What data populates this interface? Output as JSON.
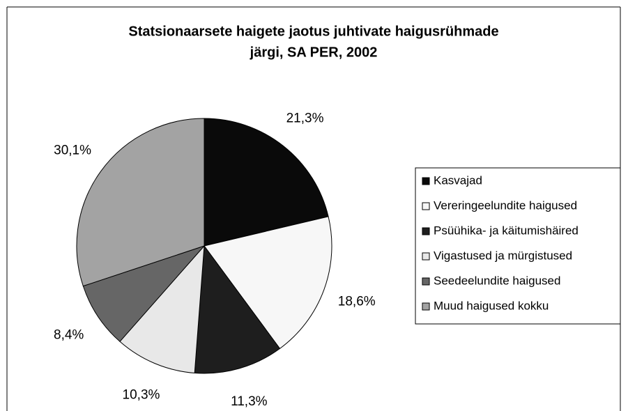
{
  "chart_data": {
    "type": "pie",
    "title": [
      "Statsionaarsete haigete jaotus juhtivate haigusrühmade",
      "järgi, SA PER, 2002"
    ],
    "categories": [
      "Kasvajad",
      "Vereringeelundite haigused",
      "Psüühika-  ja käitumishäired",
      "Vigastused ja mürgistused",
      "Seedeelundite haigused",
      "Muud haigused kokku"
    ],
    "values": [
      21.3,
      18.6,
      11.3,
      10.3,
      8.4,
      30.1
    ],
    "value_labels": [
      "21,3%",
      "18,6%",
      "11,3%",
      "10,3%",
      "8,4%",
      "30,1%"
    ],
    "colors": [
      "#0a0a0a",
      "#f7f7f7",
      "#1e1e1e",
      "#e8e8e8",
      "#666666",
      "#a3a3a3"
    ],
    "legend": "right"
  }
}
